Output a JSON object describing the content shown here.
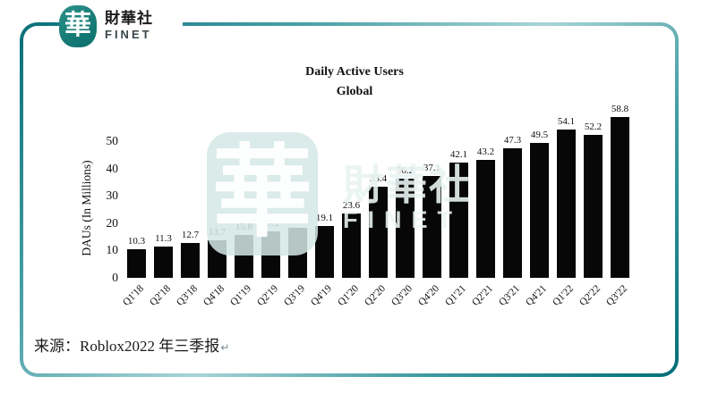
{
  "header": {
    "logo_char": "華",
    "brand_cn": "財華社",
    "brand_en": "FINET"
  },
  "watermark": {
    "logo_char": "華",
    "brand_cn": "財華社",
    "brand_en": "FINET"
  },
  "chart_data": {
    "type": "bar",
    "title": "Daily Active Users",
    "subtitle": "Global",
    "ylabel": "DAUs (In Millions)",
    "categories": [
      "Q1'18",
      "Q2'18",
      "Q3'18",
      "Q4'18",
      "Q1'19",
      "Q2'19",
      "Q3'19",
      "Q4'19",
      "Q1'20",
      "Q2'20",
      "Q3'20",
      "Q4'20",
      "Q1'21",
      "Q2'21",
      "Q3'21",
      "Q4'21",
      "Q1'22",
      "Q2'22",
      "Q3'22"
    ],
    "values": [
      10.3,
      11.3,
      12.7,
      13.7,
      15.8,
      17.1,
      18.4,
      19.1,
      23.6,
      33.4,
      36.2,
      37.1,
      42.1,
      43.2,
      47.3,
      49.5,
      54.1,
      52.2,
      58.8
    ],
    "yticks": [
      0,
      10,
      20,
      30,
      40,
      50
    ],
    "ylim": [
      0,
      60
    ],
    "bar_color": "#070707",
    "grid": false,
    "legend": "none",
    "value_labels": true
  },
  "footer": {
    "source": "来源：Roblox2022 年三季报",
    "return_mark": "↵"
  },
  "colors": {
    "accent_teal": "#0e757c",
    "border_light": "#a7d4d7",
    "watermark_fill": "#d4e8e5",
    "bar": "#070707"
  }
}
